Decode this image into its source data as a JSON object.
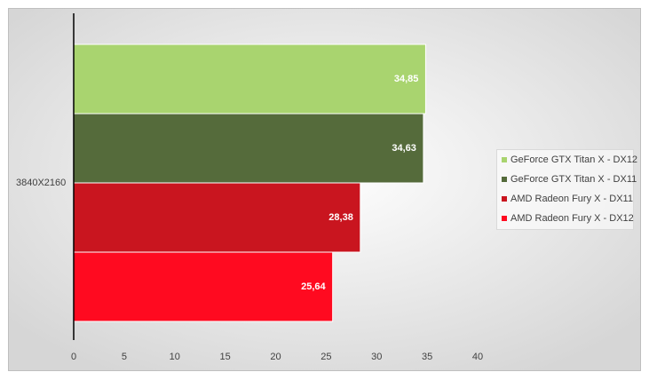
{
  "chart_data": {
    "type": "bar",
    "orientation": "horizontal",
    "categories": [
      "3840X2160"
    ],
    "series": [
      {
        "name": "GeForce GTX Titan X - DX12",
        "color": "#a9d46f",
        "values": [
          34.85
        ],
        "value_labels": [
          "34,85"
        ]
      },
      {
        "name": "GeForce GTX Titan X - DX11",
        "color": "#556b3b",
        "values": [
          34.63
        ],
        "value_labels": [
          "34,63"
        ]
      },
      {
        "name": "AMD Radeon Fury X - DX11",
        "color": "#c9151f",
        "values": [
          28.38
        ],
        "value_labels": [
          "28,38"
        ]
      },
      {
        "name": "AMD Radeon Fury X - DX12",
        "color": "#ff0a20",
        "values": [
          25.64
        ],
        "value_labels": [
          "25,64"
        ]
      }
    ],
    "xlim": [
      0,
      40
    ],
    "xticks": [
      0,
      5,
      10,
      15,
      20,
      25,
      30,
      35,
      40
    ],
    "grid": false,
    "legend": "right"
  }
}
